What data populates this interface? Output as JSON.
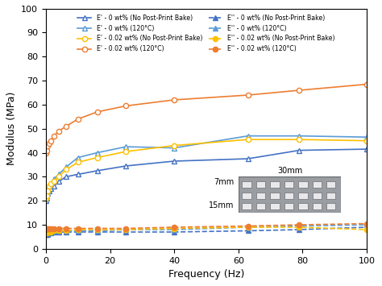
{
  "chart_data": {
    "type": "line",
    "x_label": "Frequency (Hz)",
    "y_label": "Modulus (MPa)",
    "x": [
      0.1,
      0.25,
      0.63,
      1,
      1.6,
      2.5,
      4,
      6.3,
      10,
      16,
      25,
      40,
      63,
      79,
      100
    ],
    "xlim": [
      0,
      100
    ],
    "xticks": [
      0,
      20,
      40,
      60,
      80,
      100
    ],
    "ylim": [
      0,
      100
    ],
    "yticks": [
      0,
      10,
      20,
      30,
      40,
      50,
      60,
      70,
      80,
      90,
      100
    ],
    "grid": false,
    "legend": "upper center",
    "annotations": [
      "30mm",
      "7mm",
      "15mm"
    ],
    "series": [
      {
        "name": "E' - 0 wt% (No Post-Print Bake)",
        "color": "#4472c4",
        "marker": "triangle",
        "line_style": "solid",
        "values": [
          20,
          21,
          23,
          24,
          25,
          26,
          28,
          30,
          31,
          32.5,
          34.5,
          36.5,
          37.5,
          41,
          41.5
        ]
      },
      {
        "name": "E' - 0 wt% (120°C)",
        "color": "#5b9bd5",
        "marker": "triangle",
        "line_style": "solid",
        "values": [
          21,
          22,
          24,
          26,
          27,
          29,
          31,
          34,
          38,
          40,
          42.5,
          42,
          47,
          47,
          46.5
        ]
      },
      {
        "name": "E' - 0.02 wt% (No Post-Print Bake)",
        "color": "#ffc000",
        "marker": "circle",
        "line_style": "solid",
        "values": [
          21,
          22,
          24,
          26,
          27,
          28,
          30,
          33,
          36,
          38,
          40.5,
          43,
          45.5,
          45.5,
          45
        ]
      },
      {
        "name": "E' - 0.02 wt% (120°C)",
        "color": "#ed7d31",
        "marker": "circle",
        "line_style": "solid",
        "values": [
          40,
          41,
          43,
          44,
          45,
          47,
          49,
          51,
          54,
          57,
          59.5,
          62,
          64,
          66,
          68.5
        ]
      },
      {
        "name": "E'' - 0 wt% (No Post-Print Bake)",
        "color": "#4472c4",
        "marker": "triangle",
        "line_style": "dashed",
        "values": [
          6,
          6,
          6,
          6.5,
          6.5,
          7,
          7,
          7,
          7,
          7,
          7,
          7,
          7.5,
          8,
          9
        ]
      },
      {
        "name": "E'' - 0 wt% (120°C)",
        "color": "#5b9bd5",
        "marker": "triangle",
        "line_style": "dashed",
        "values": [
          7,
          7,
          7,
          7,
          7.5,
          7.5,
          7.5,
          7.5,
          7.5,
          7.5,
          8,
          8,
          9,
          9.5,
          10
        ]
      },
      {
        "name": "E'' - 0.02 wt% (No Post-Print Bake)",
        "color": "#ffc000",
        "marker": "circle",
        "line_style": "dashed",
        "values": [
          6.5,
          6.5,
          7,
          7,
          7,
          7.5,
          7.5,
          7.5,
          8,
          8,
          8,
          8.5,
          9,
          9,
          8
        ]
      },
      {
        "name": "E'' - 0.02 wt% (120°C)",
        "color": "#ed7d31",
        "marker": "circle",
        "line_style": "dashed",
        "values": [
          8,
          8.5,
          8.5,
          8.5,
          8.5,
          8.5,
          8.5,
          8.5,
          8.5,
          8.5,
          8.5,
          9,
          9.5,
          10,
          10.5
        ]
      }
    ]
  }
}
